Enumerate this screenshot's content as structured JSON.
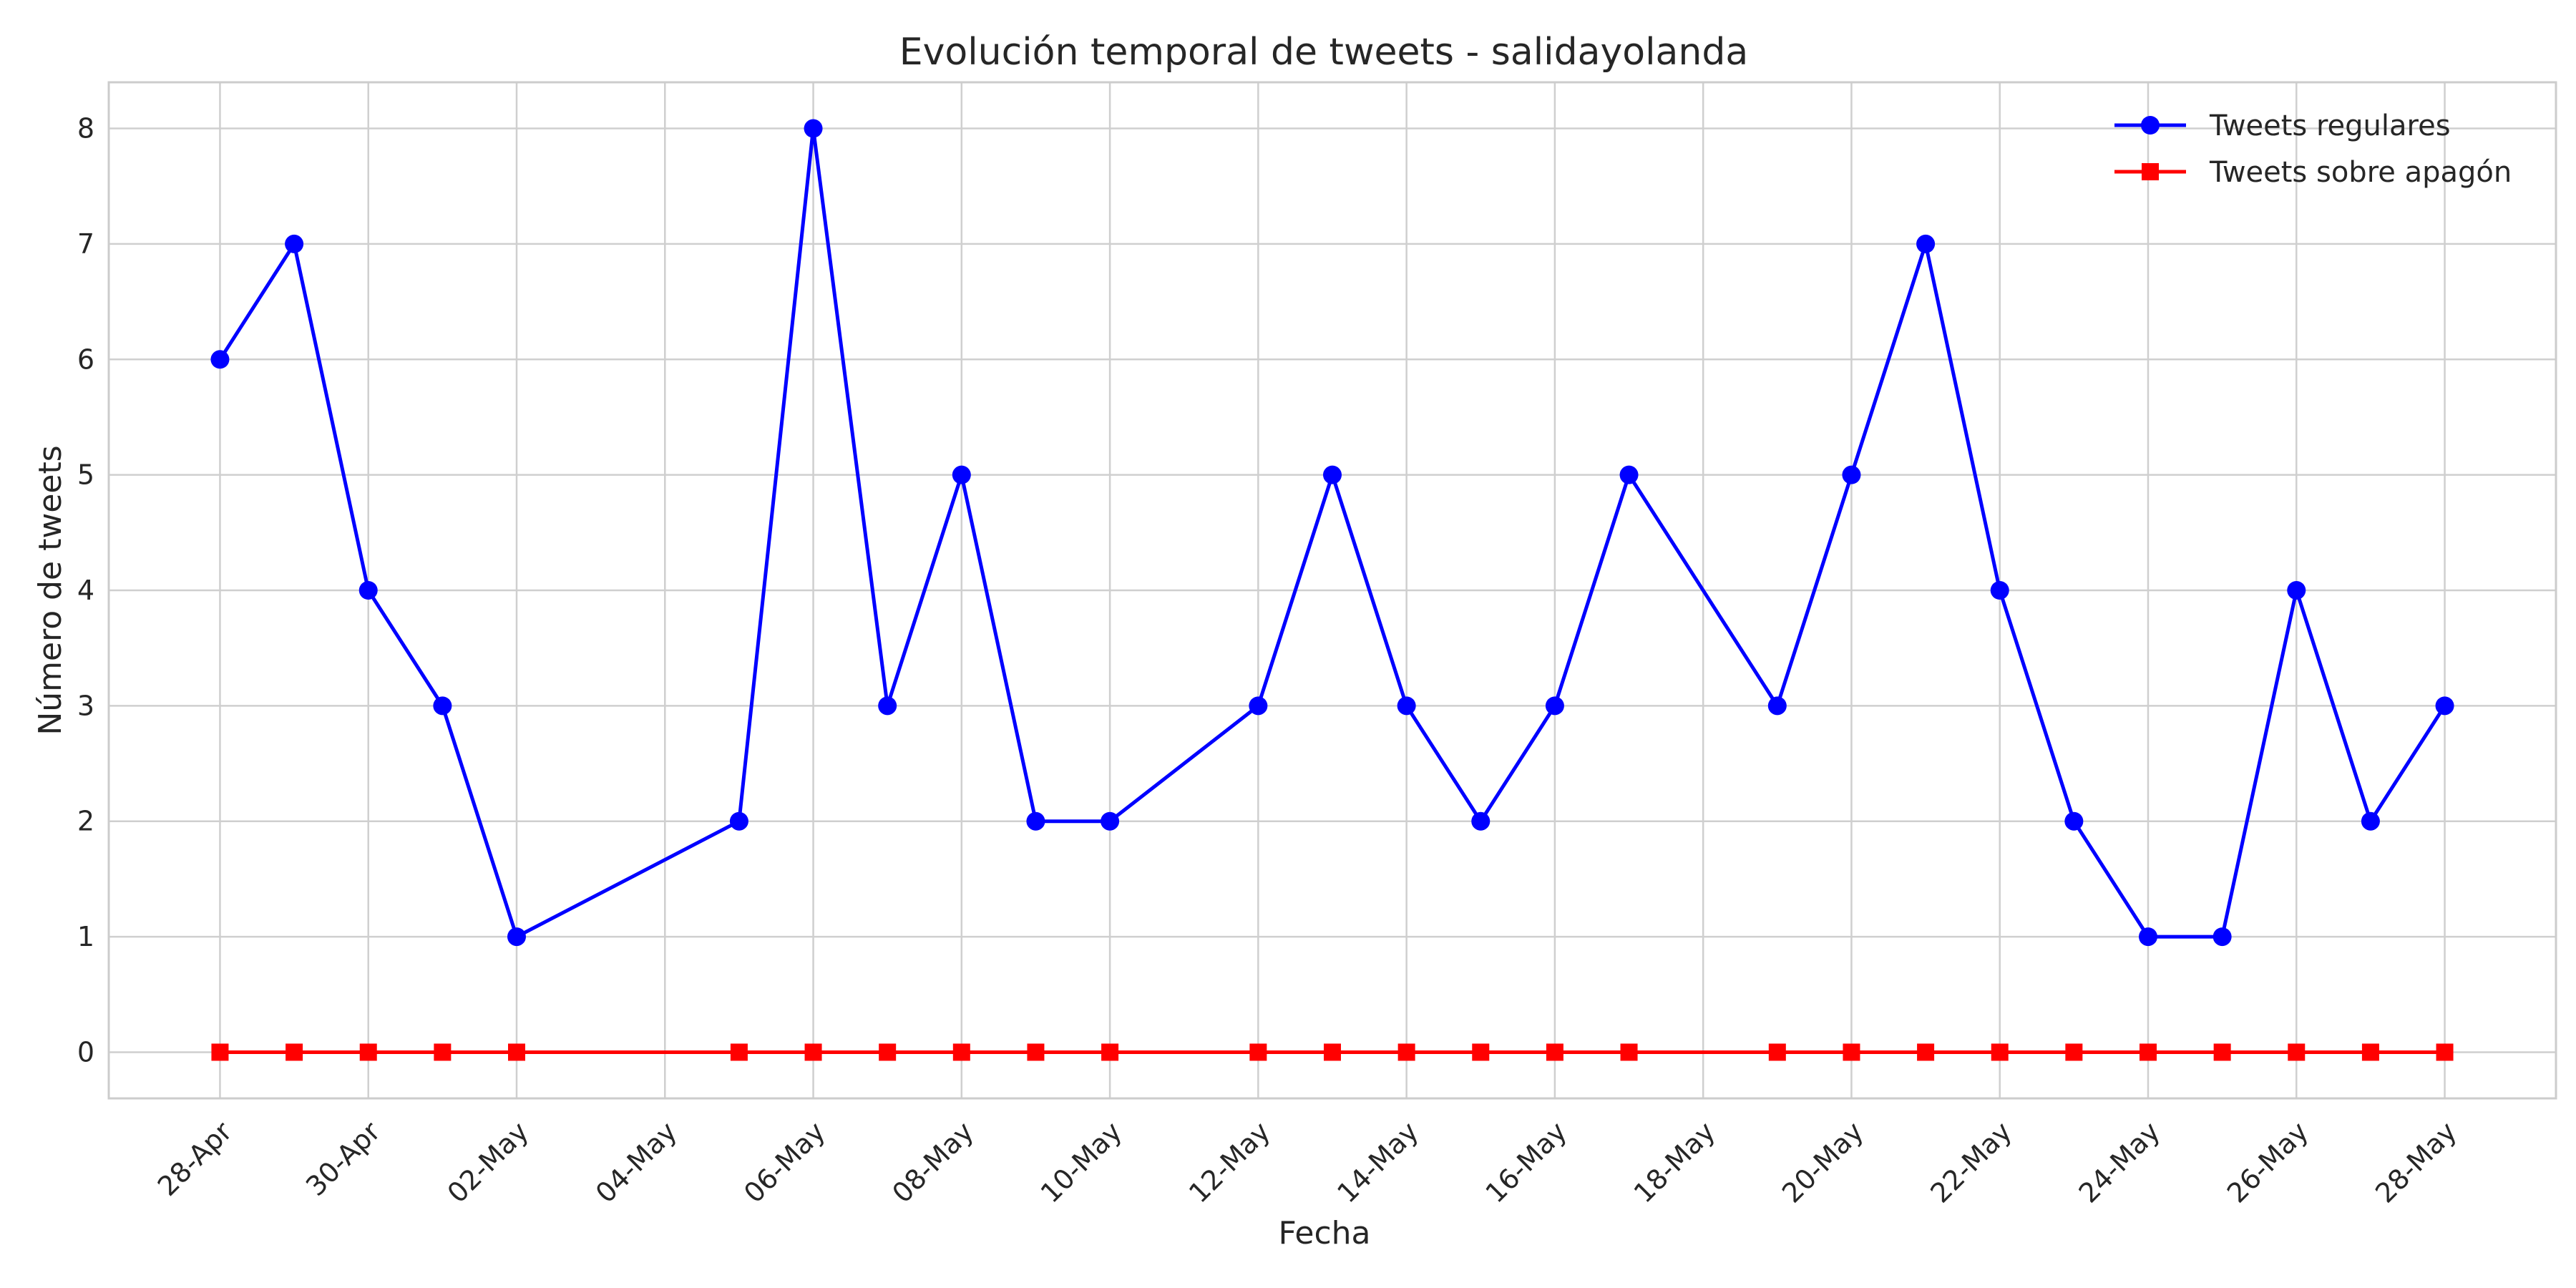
{
  "chart_data": {
    "type": "line",
    "title": "Evolución temporal de tweets - salidayolanda",
    "xlabel": "Fecha",
    "ylabel": "Número de tweets",
    "ylim": [
      -0.4,
      8.4
    ],
    "yticks": [
      0,
      1,
      2,
      3,
      4,
      5,
      6,
      7,
      8
    ],
    "xlim": [
      "2025-04-26T12:00",
      "2025-05-29T12:00"
    ],
    "xticks": [
      {
        "date": "2025-04-28",
        "label": "28-Apr"
      },
      {
        "date": "2025-04-30",
        "label": "30-Apr"
      },
      {
        "date": "2025-05-02",
        "label": "02-May"
      },
      {
        "date": "2025-05-04",
        "label": "04-May"
      },
      {
        "date": "2025-05-06",
        "label": "06-May"
      },
      {
        "date": "2025-05-08",
        "label": "08-May"
      },
      {
        "date": "2025-05-10",
        "label": "10-May"
      },
      {
        "date": "2025-05-12",
        "label": "12-May"
      },
      {
        "date": "2025-05-14",
        "label": "14-May"
      },
      {
        "date": "2025-05-16",
        "label": "16-May"
      },
      {
        "date": "2025-05-18",
        "label": "18-May"
      },
      {
        "date": "2025-05-20",
        "label": "20-May"
      },
      {
        "date": "2025-05-22",
        "label": "22-May"
      },
      {
        "date": "2025-05-24",
        "label": "24-May"
      },
      {
        "date": "2025-05-26",
        "label": "26-May"
      },
      {
        "date": "2025-05-28",
        "label": "28-May"
      }
    ],
    "x": [
      "2025-04-28",
      "2025-04-29",
      "2025-04-30",
      "2025-05-01",
      "2025-05-02",
      "2025-05-05",
      "2025-05-06",
      "2025-05-07",
      "2025-05-08",
      "2025-05-09",
      "2025-05-10",
      "2025-05-12",
      "2025-05-13",
      "2025-05-14",
      "2025-05-15",
      "2025-05-16",
      "2025-05-17",
      "2025-05-19",
      "2025-05-20",
      "2025-05-21",
      "2025-05-22",
      "2025-05-23",
      "2025-05-24",
      "2025-05-25",
      "2025-05-26",
      "2025-05-27",
      "2025-05-28"
    ],
    "series": [
      {
        "name": "Tweets regulares",
        "color": "#0000ff",
        "marker": "circle",
        "values": [
          6,
          7,
          4,
          3,
          1,
          2,
          8,
          3,
          5,
          2,
          2,
          3,
          5,
          3,
          2,
          3,
          5,
          3,
          5,
          7,
          4,
          2,
          1,
          1,
          4,
          2,
          3
        ]
      },
      {
        "name": "Tweets sobre apagón",
        "color": "#ff0000",
        "marker": "square",
        "values": [
          0,
          0,
          0,
          0,
          0,
          0,
          0,
          0,
          0,
          0,
          0,
          0,
          0,
          0,
          0,
          0,
          0,
          0,
          0,
          0,
          0,
          0,
          0,
          0,
          0,
          0,
          0
        ]
      }
    ],
    "grid": true,
    "legend": "top-right"
  }
}
